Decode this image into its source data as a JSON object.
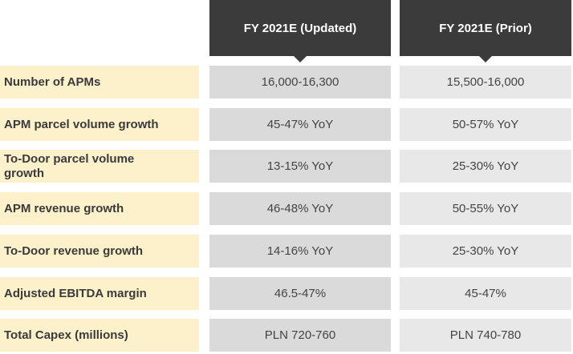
{
  "table": {
    "columns": [
      "FY 2021E (Updated)",
      "FY 2021E (Prior)"
    ],
    "rows": [
      [
        "Number of APMs",
        "16,000-16,300",
        "15,500-16,000"
      ],
      [
        "APM parcel volume growth",
        "45-47% YoY",
        "50-57% YoY"
      ],
      [
        "To-Door parcel volume growth",
        "13-15% YoY",
        "25-30% YoY"
      ],
      [
        "APM revenue growth",
        "46-48% YoY",
        "50-55% YoY"
      ],
      [
        "To-Door revenue growth",
        "14-16% YoY",
        "25-30% YoY"
      ],
      [
        "Adjusted EBITDA margin",
        "46.5-47%",
        "45-47%"
      ],
      [
        "Total Capex (millions)",
        "PLN 720-760",
        "PLN 740-780"
      ]
    ]
  }
}
